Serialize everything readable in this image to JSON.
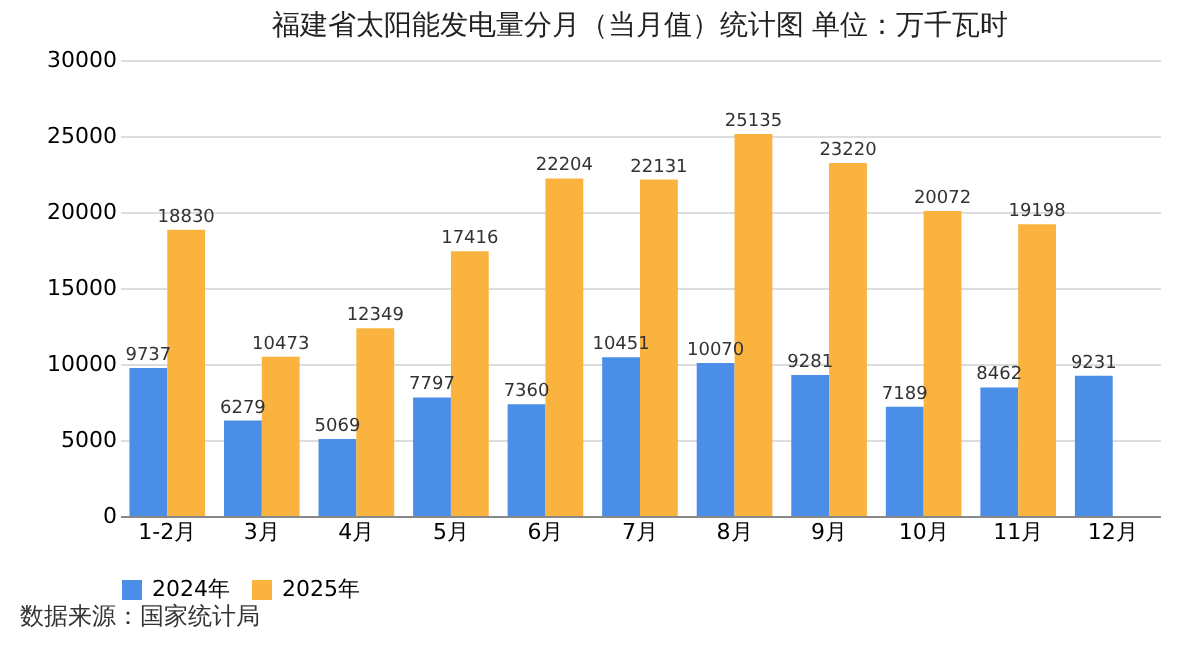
{
  "chart_data": {
    "type": "bar",
    "title": "福建省太阳能发电量分月（当月值）统计图  单位：万千瓦时",
    "categories": [
      "1-2月",
      "3月",
      "4月",
      "5月",
      "6月",
      "7月",
      "8月",
      "9月",
      "10月",
      "11月",
      "12月"
    ],
    "series": [
      {
        "name": "2024年",
        "color": "#4a8ee8",
        "values": [
          9737,
          6279,
          5069,
          7797,
          7360,
          10451,
          10070,
          9281,
          7189,
          8462,
          9231
        ]
      },
      {
        "name": "2025年",
        "color": "#f9b33e",
        "values": [
          18830,
          10473,
          12349,
          17416,
          22204,
          22131,
          25135,
          23220,
          20072,
          19198,
          null
        ]
      }
    ],
    "ylim": [
      0,
      30000
    ],
    "yticks": [
      0,
      5000,
      10000,
      15000,
      20000,
      25000,
      30000
    ],
    "grid": "y",
    "legend": "bottom",
    "data_labels": true,
    "annotations": [
      "数据来源：国家统计局"
    ]
  }
}
